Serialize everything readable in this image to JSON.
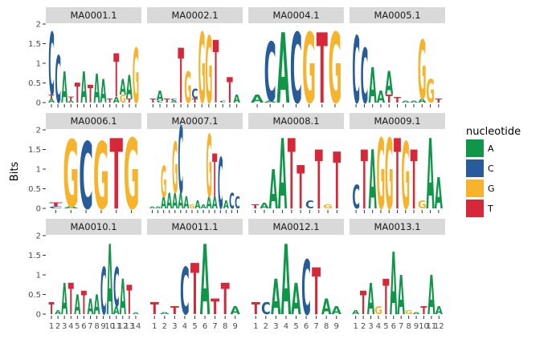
{
  "chart_data": {
    "type": "sequence-logo",
    "ylabel": "Bits",
    "ylim": [
      0,
      2
    ],
    "yticks": [
      "0",
      "0.5",
      "1",
      "1.5",
      "2"
    ],
    "legend": {
      "title": "nucleotide",
      "placement": "right",
      "entries": [
        {
          "label": "A",
          "color": "#109648"
        },
        {
          "label": "C",
          "color": "#255C99"
        },
        {
          "label": "G",
          "color": "#F7B32B"
        },
        {
          "label": "T",
          "color": "#D62839"
        }
      ]
    },
    "panels": [
      {
        "title": "MA0001.1",
        "positions": [
          {
            "A": 0.1,
            "C": 1.6,
            "T": 0.1
          },
          {
            "C": 1.2
          },
          {
            "A": 0.8
          },
          {
            "T": 0.1,
            "A": 0.05
          },
          {
            "T": 0.5
          },
          {
            "A": 0.8
          },
          {
            "T": 0.45
          },
          {
            "A": 0.75
          },
          {
            "A": 0.6
          },
          {
            "T": 0.1
          },
          {
            "T": 1.1,
            "A": 0.15
          },
          {
            "G": 0.2,
            "A": 0.4
          },
          {
            "A": 0.6,
            "T": 0.1
          },
          {
            "G": 1.4
          }
        ]
      },
      {
        "title": "MA0002.1",
        "positions": [
          {
            "T": 0.1
          },
          {
            "A": 0.25,
            "C": 0.05
          },
          {
            "T": 0.1
          },
          {
            "A": 0.05,
            "C": 0.05
          },
          {
            "T": 1.4
          },
          {
            "G": 0.8
          },
          {
            "C": 0.25,
            "T": 0.1
          },
          {
            "G": 1.8
          },
          {
            "G": 1.7
          },
          {
            "T": 1.6
          },
          {
            "C": 0.05
          },
          {
            "T": 0.65
          },
          {
            "A": 0.2
          }
        ]
      },
      {
        "title": "MA0004.1",
        "positions": [
          {
            "A": 0.2
          },
          {
            "C": 1.5,
            "A": 0.05
          },
          {
            "A": 1.8
          },
          {
            "C": 1.8
          },
          {
            "G": 1.8
          },
          {
            "T": 1.8
          },
          {
            "G": 1.8
          }
        ]
      },
      {
        "title": "MA0005.1",
        "positions": [
          {
            "C": 1.7
          },
          {
            "C": 1.4
          },
          {
            "A": 0.9
          },
          {
            "A": 0.3
          },
          {
            "T": 0.2,
            "A": 0.6
          },
          {
            "T": 0.15
          },
          {
            "A": 0.05
          },
          {
            "A": 0.05
          },
          {
            "G": 1.5,
            "A": 0.1
          },
          {
            "G": 0.6
          },
          {
            "T": 0.1
          }
        ]
      },
      {
        "title": "MA0006.1",
        "positions": [
          {
            "T": 0.1,
            "C": 0.05
          },
          {
            "G": 1.7,
            "A": 0.05
          },
          {
            "C": 1.7
          },
          {
            "G": 1.7
          },
          {
            "T": 1.8
          },
          {
            "G": 1.8
          }
        ]
      },
      {
        "title": "MA0007.1",
        "positions": [
          {
            "A": 0.05
          },
          {
            "A": 0.05
          },
          {
            "G": 0.8,
            "A": 0.3
          },
          {
            "A": 0.4
          },
          {
            "G": 1.3,
            "A": 0.4
          },
          {
            "C": 1.7,
            "A": 0.4
          },
          {
            "A": 0.3
          },
          {
            "G": 0.1
          },
          {
            "A": 0.2
          },
          {
            "A": 0.1
          },
          {
            "G": 1.6,
            "A": 0.3
          },
          {
            "T": 1.1,
            "A": 0.3
          },
          {
            "C": 1.3
          },
          {
            "A": 0.2
          },
          {
            "C": 0.4
          },
          {
            "C": 0.3
          }
        ]
      },
      {
        "title": "MA0008.1",
        "positions": [
          {
            "T": 0.1
          },
          {
            "A": 0.15
          },
          {
            "A": 1.0
          },
          {
            "A": 1.8
          },
          {
            "T": 1.8
          },
          {
            "T": 1.1
          },
          {
            "C": 0.2
          },
          {
            "T": 1.5
          },
          {
            "G": 0.1
          },
          {
            "T": 1.45
          }
        ]
      },
      {
        "title": "MA0009.1",
        "positions": [
          {
            "C": 0.6
          },
          {
            "T": 1.5
          },
          {
            "A": 1.5
          },
          {
            "G": 1.8
          },
          {
            "G": 1.8
          },
          {
            "T": 1.8
          },
          {
            "G": 1.7
          },
          {
            "T": 1.5
          },
          {
            "G": 0.2
          },
          {
            "A": 1.8
          },
          {
            "A": 0.8
          }
        ]
      },
      {
        "title": "MA0010.1",
        "positions": [
          {
            "T": 0.3
          },
          {
            "A": 0.1
          },
          {
            "A": 0.8
          },
          {
            "T": 0.8
          },
          {
            "A": 0.5
          },
          {
            "T": 0.6
          },
          {
            "A": 0.4
          },
          {
            "A": 0.5
          },
          {
            "C": 1.2
          },
          {
            "A": 1.8
          },
          {
            "C": 1.0,
            "A": 0.2
          },
          {
            "A": 0.9
          },
          {
            "T": 0.75
          },
          {
            "A": 0.05
          }
        ]
      },
      {
        "title": "MA0011.1",
        "positions": [
          {
            "T": 0.3
          },
          {
            "A": 0.05
          },
          {
            "T": 0.2
          },
          {
            "C": 1.2
          },
          {
            "T": 1.3
          },
          {
            "A": 1.8
          },
          {
            "T": 0.4
          },
          {
            "T": 0.8
          },
          {
            "A": 0.2
          }
        ]
      },
      {
        "title": "MA0012.1",
        "positions": [
          {
            "T": 0.3
          },
          {
            "C": 0.3
          },
          {
            "A": 0.9
          },
          {
            "A": 1.8
          },
          {
            "A": 0.8
          },
          {
            "C": 1.4
          },
          {
            "T": 1.2
          },
          {
            "A": 0.4
          },
          {
            "A": 0.2
          }
        ]
      },
      {
        "title": "MA0013.1",
        "positions": [
          {
            "A": 0.1
          },
          {
            "T": 0.6
          },
          {
            "A": 0.8
          },
          {
            "G": 0.2
          },
          {
            "T": 0.9
          },
          {
            "A": 1.6
          },
          {
            "A": 1.0
          },
          {
            "G": 0.1
          },
          {
            "A": 0.05
          },
          {
            "T": 0.2
          },
          {
            "A": 1.0
          },
          {
            "A": 0.2
          }
        ]
      }
    ]
  }
}
